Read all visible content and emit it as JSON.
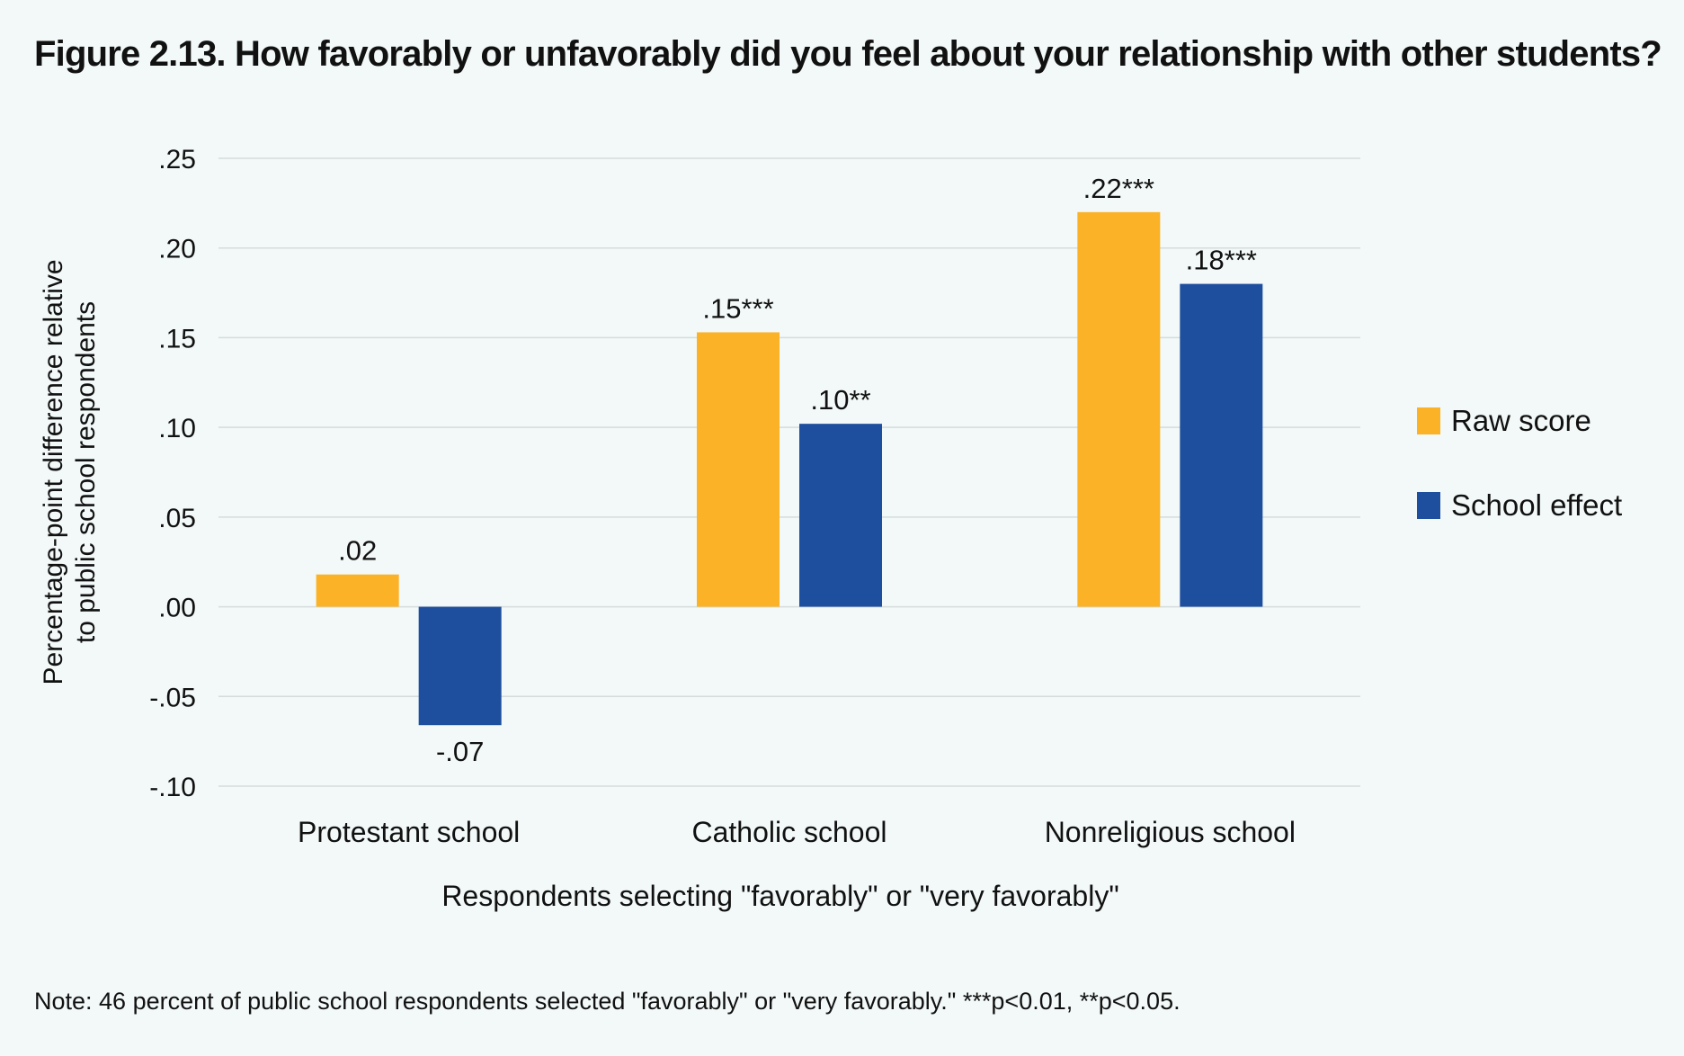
{
  "title": "Figure 2.13. How favorably or unfavorably did you feel about your relationship with other students?",
  "note": "Note: 46 percent of public school respondents selected \"favorably\" or \"very favorably.\" ***p<0.01, **p<0.05.",
  "colors": {
    "raw": "#fbb226",
    "school": "#1e4f9f",
    "grid": "#d5dcdc",
    "background": "#f2f9f8"
  },
  "chart_data": {
    "type": "bar",
    "title": "Figure 2.13. How favorably or unfavorably did you feel about your relationship with other students?",
    "categories": [
      "Protestant school",
      "Catholic school",
      "Nonreligious school"
    ],
    "series": [
      {
        "name": "Raw score",
        "color": "#fbb226",
        "values": [
          0.018,
          0.153,
          0.22
        ],
        "labels": [
          ".02",
          ".15***",
          ".22***"
        ]
      },
      {
        "name": "School effect",
        "color": "#1e4f9f",
        "values": [
          -0.066,
          0.102,
          0.18
        ],
        "labels": [
          "-.07",
          ".10**",
          ".18***"
        ]
      }
    ],
    "xlabel": "Respondents selecting \"favorably\" or \"very favorably\"",
    "ylabel_lines": [
      "Percentage-point difference relative",
      "to public school respondents"
    ],
    "ylim": [
      -0.1,
      0.25
    ],
    "yticks": [
      0.25,
      0.2,
      0.15,
      0.1,
      0.05,
      0.0,
      -0.05,
      -0.1
    ],
    "ytick_labels": [
      ".25",
      ".20",
      ".15",
      ".10",
      ".05",
      ".00",
      "-.05",
      "-.10"
    ],
    "grid": true,
    "legend_position": "right"
  }
}
